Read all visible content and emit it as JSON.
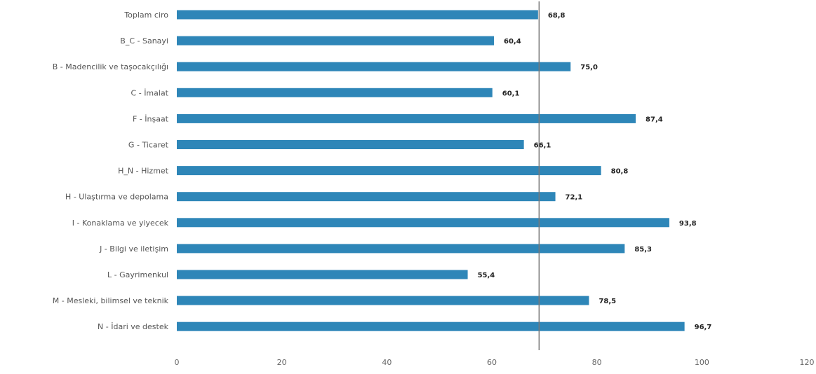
{
  "chart_data": {
    "type": "bar",
    "orientation": "horizontal",
    "categories": [
      "Toplam ciro",
      "B_C - Sanayi",
      "B - Madencilik ve taşocakçılığı",
      "C - İmalat",
      "F - İnşaat",
      "G - Ticaret",
      "H_N - Hizmet",
      "H - Ulaştırma ve depolama",
      "I - Konaklama ve yiyecek",
      "J - Bilgi ve iletişim",
      "L - Gayrimenkul",
      "M - Mesleki, bilimsel ve teknik",
      "N - İdari ve destek"
    ],
    "values": [
      68.8,
      60.4,
      75.0,
      60.1,
      87.4,
      66.1,
      80.8,
      72.1,
      93.8,
      85.3,
      55.4,
      78.5,
      96.7
    ],
    "value_labels": [
      "68,8",
      "60,4",
      "75,0",
      "60,1",
      "87,4",
      "66,1",
      "80,8",
      "72,1",
      "93,8",
      "85,3",
      "55,4",
      "78,5",
      "96,7"
    ],
    "xlim": [
      0,
      120
    ],
    "xticks": [
      0,
      20,
      40,
      60,
      80,
      100,
      120
    ],
    "reference_line": 69,
    "grid": false,
    "bar_color": "#2e86b8",
    "ref_line_color": "#777777"
  }
}
